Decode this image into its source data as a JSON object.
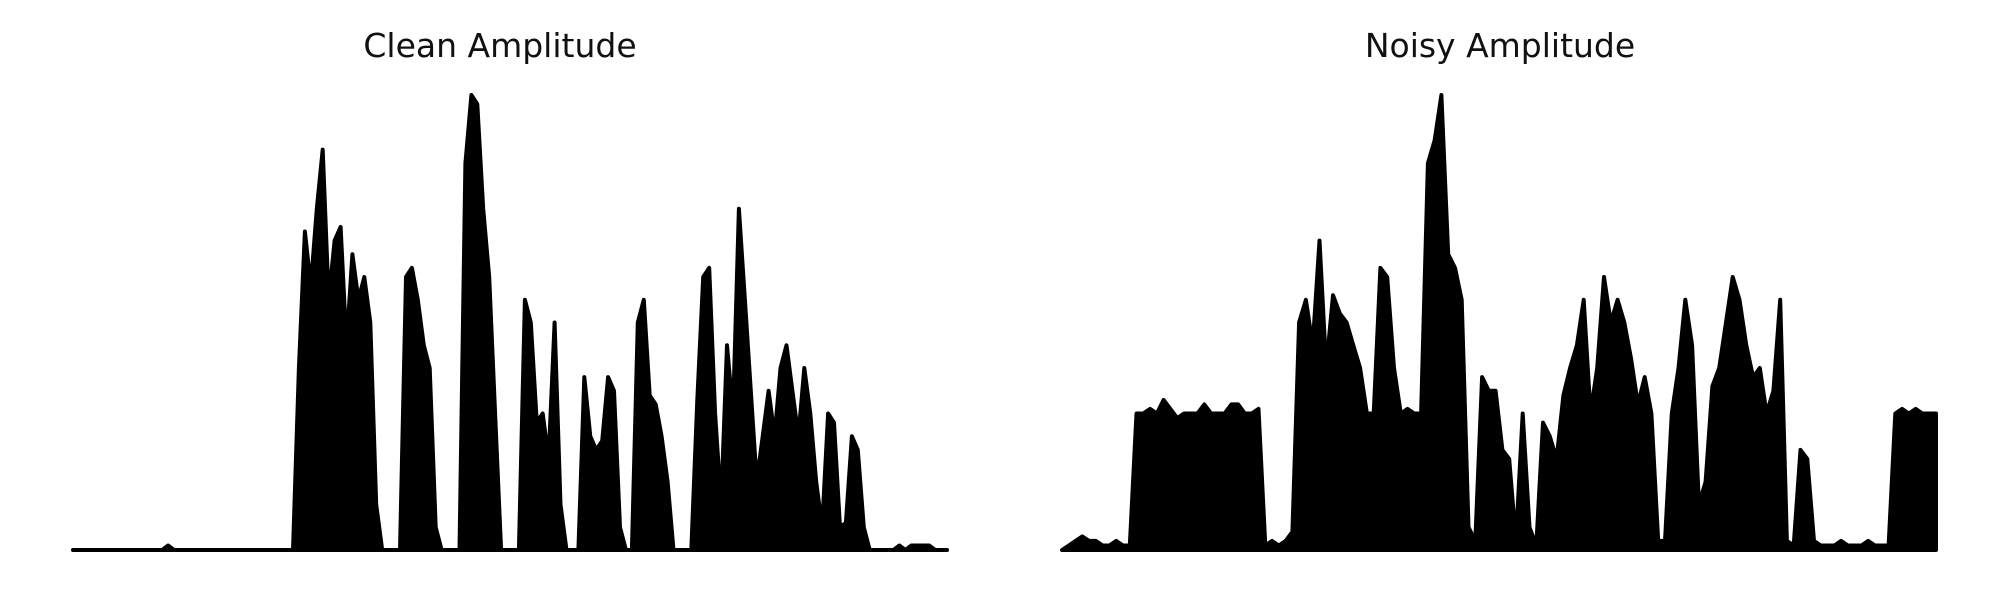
{
  "colors": {
    "trace": "#000000",
    "background": "#ffffff"
  },
  "chart_data": [
    {
      "type": "area",
      "title": "Clean Amplitude",
      "xlabel": "",
      "ylabel": "",
      "ylim": [
        0,
        1
      ],
      "axes_visible": false,
      "grid": false,
      "series": [
        {
          "values": [
            0,
            0,
            0,
            0,
            0,
            0,
            0,
            0,
            0,
            0,
            0,
            0,
            0,
            0,
            0,
            0,
            0.01,
            0,
            0,
            0,
            0,
            0,
            0,
            0,
            0,
            0,
            0,
            0,
            0,
            0,
            0,
            0,
            0,
            0,
            0,
            0,
            0,
            0,
            0.4,
            0.7,
            0.58,
            0.75,
            0.88,
            0.55,
            0.68,
            0.71,
            0.45,
            0.65,
            0.55,
            0.6,
            0.5,
            0.1,
            0,
            0,
            0,
            0,
            0.6,
            0.62,
            0.55,
            0.45,
            0.4,
            0.05,
            0,
            0,
            0,
            0,
            0.85,
            1.0,
            0.98,
            0.75,
            0.6,
            0.3,
            0,
            0,
            0,
            0,
            0.55,
            0.5,
            0.28,
            0.3,
            0.2,
            0.5,
            0.1,
            0,
            0,
            0,
            0.38,
            0.25,
            0.22,
            0.24,
            0.38,
            0.35,
            0.05,
            0,
            0,
            0.5,
            0.55,
            0.34,
            0.32,
            0.25,
            0.15,
            0,
            0,
            0,
            0,
            0.33,
            0.6,
            0.62,
            0.3,
            0.1,
            0.45,
            0.3,
            0.75,
            0.55,
            0.35,
            0.15,
            0.25,
            0.35,
            0.25,
            0.4,
            0.45,
            0.35,
            0.25,
            0.4,
            0.3,
            0.15,
            0.05,
            0.3,
            0.28,
            0.05,
            0.06,
            0.25,
            0.22,
            0.05,
            0,
            0,
            0,
            0,
            0,
            0.01,
            0,
            0.01,
            0.01,
            0.01,
            0.01,
            0,
            0,
            0
          ]
        }
      ]
    },
    {
      "type": "area",
      "title": "Noisy Amplitude",
      "xlabel": "",
      "ylabel": "",
      "ylim": [
        0,
        1
      ],
      "axes_visible": false,
      "grid": false,
      "series": [
        {
          "values": [
            0,
            0.01,
            0.02,
            0.03,
            0.02,
            0.02,
            0.01,
            0.01,
            0.02,
            0.01,
            0.01,
            0.3,
            0.3,
            0.31,
            0.3,
            0.33,
            0.31,
            0.29,
            0.3,
            0.3,
            0.3,
            0.32,
            0.3,
            0.3,
            0.3,
            0.32,
            0.32,
            0.3,
            0.3,
            0.31,
            0.01,
            0.02,
            0.01,
            0.02,
            0.04,
            0.5,
            0.55,
            0.45,
            0.68,
            0.4,
            0.56,
            0.52,
            0.5,
            0.45,
            0.4,
            0.3,
            0.3,
            0.62,
            0.6,
            0.4,
            0.3,
            0.31,
            0.3,
            0.3,
            0.85,
            0.9,
            1.0,
            0.65,
            0.62,
            0.55,
            0.05,
            0.02,
            0.38,
            0.35,
            0.35,
            0.22,
            0.2,
            0.02,
            0.3,
            0.05,
            0.01,
            0.28,
            0.25,
            0.2,
            0.34,
            0.4,
            0.45,
            0.55,
            0.3,
            0.4,
            0.6,
            0.5,
            0.55,
            0.5,
            0.42,
            0.32,
            0.38,
            0.3,
            0.02,
            0.02,
            0.3,
            0.4,
            0.55,
            0.45,
            0.1,
            0.15,
            0.36,
            0.4,
            0.5,
            0.6,
            0.55,
            0.45,
            0.38,
            0.4,
            0.3,
            0.35,
            0.55,
            0.02,
            0.01,
            0.22,
            0.2,
            0.02,
            0.01,
            0.01,
            0.01,
            0.02,
            0.01,
            0.01,
            0.01,
            0.02,
            0.01,
            0.01,
            0.01,
            0.3,
            0.31,
            0.3,
            0.31,
            0.3,
            0.3,
            0.3
          ]
        }
      ]
    }
  ]
}
